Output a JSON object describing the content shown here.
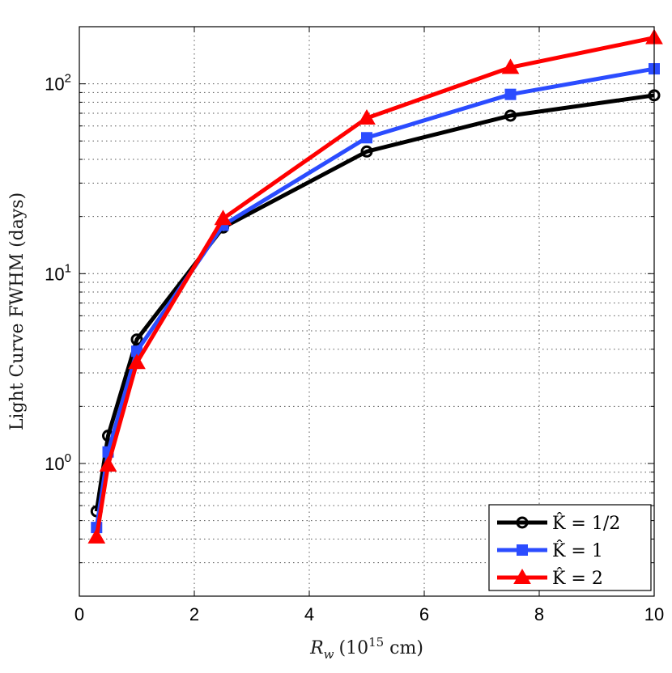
{
  "chart_data": {
    "type": "line",
    "xlabel": "R_w (10^15 cm)",
    "xlabel_parts": {
      "var": "R",
      "sub": "w",
      "open": "(10",
      "exp": "15",
      "close": " cm)"
    },
    "ylabel": "Light Curve FWHM (days)",
    "xlim": [
      0,
      10
    ],
    "ylim": [
      0.2,
      200
    ],
    "yscale": "log",
    "grid": true,
    "legend_position": "bottom-right",
    "xticks": [
      0,
      2,
      4,
      6,
      8,
      10
    ],
    "xtick_labels": [
      "0",
      "2",
      "4",
      "6",
      "8",
      "10"
    ],
    "yticks": [
      1,
      10,
      100
    ],
    "ytick_labels": [
      {
        "base": "10",
        "exp": "0"
      },
      {
        "base": "10",
        "exp": "1"
      },
      {
        "base": "10",
        "exp": "2"
      }
    ],
    "series": [
      {
        "name": "K̂ = 1/2",
        "color": "#000000",
        "marker": "circle",
        "x": [
          0.3,
          0.5,
          1.0,
          2.5,
          5.0,
          7.5,
          10.0
        ],
        "y": [
          0.56,
          1.4,
          4.5,
          17.5,
          44,
          68,
          87
        ]
      },
      {
        "name": "K̂ = 1",
        "color": "#2b4cff",
        "marker": "square",
        "x": [
          0.3,
          0.5,
          1.0,
          2.5,
          5.0,
          7.5,
          10.0
        ],
        "y": [
          0.46,
          1.15,
          3.9,
          18,
          52,
          88,
          120
        ]
      },
      {
        "name": "K̂ = 2",
        "color": "#ff0000",
        "marker": "triangle",
        "x": [
          0.3,
          0.5,
          1.0,
          2.5,
          5.0,
          7.5,
          10.0
        ],
        "y": [
          0.41,
          0.98,
          3.4,
          19.5,
          66,
          122,
          175
        ]
      }
    ]
  }
}
